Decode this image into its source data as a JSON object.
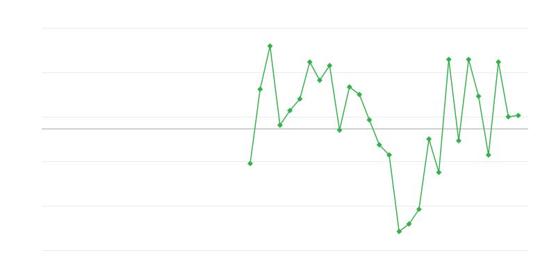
{
  "chart_data": {
    "type": "line",
    "title": "",
    "xlabel": "",
    "ylabel": "",
    "x": [
      21,
      22,
      23,
      24,
      25,
      26,
      27,
      28,
      29,
      30,
      31,
      32,
      33,
      34,
      35,
      36,
      37,
      38,
      39,
      40,
      41,
      42,
      43,
      44,
      45,
      46,
      47,
      48
    ],
    "series": [
      {
        "values": [
          -0.78,
          0.89,
          1.86,
          0.08,
          0.41,
          0.67,
          1.5,
          1.09,
          1.42,
          -0.03,
          0.94,
          0.77,
          0.2,
          -0.36,
          -0.59,
          -2.31,
          -2.14,
          -1.81,
          -0.23,
          -0.98,
          1.56,
          -0.27,
          1.56,
          0.73,
          -0.59,
          1.5,
          0.27,
          0.3
        ],
        "color": "#34b24a",
        "marker": "diamond"
      }
    ],
    "xlim": [
      0,
      49
    ],
    "ylim": [
      -2.73,
      2.27
    ],
    "gridlines": [
      2.27,
      1.27,
      0.27,
      -0.73,
      -1.73,
      -2.73
    ],
    "baseline": 0,
    "grid": true,
    "tick_labels_shown": false,
    "legend": "none",
    "colors": {
      "grid": "#ebebeb",
      "baseline": "#aaaaaa"
    }
  }
}
